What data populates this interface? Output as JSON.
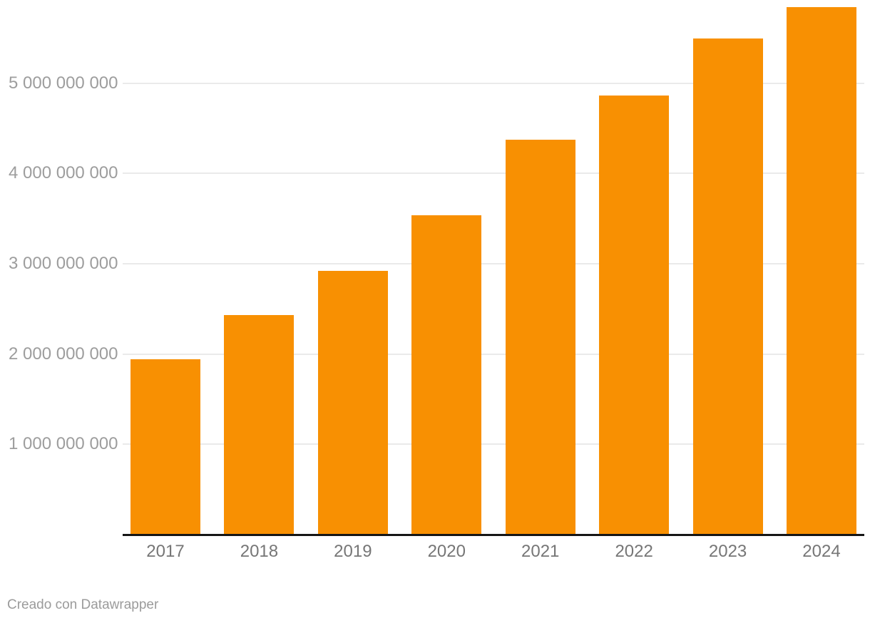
{
  "chart_data": {
    "type": "bar",
    "categories": [
      "2017",
      "2018",
      "2019",
      "2020",
      "2021",
      "2022",
      "2023",
      "2024"
    ],
    "values": [
      1940000000,
      2430000000,
      2920000000,
      3540000000,
      4370000000,
      4860000000,
      5490000000,
      5840000000
    ],
    "ylim": [
      0,
      5920000000
    ],
    "yticks": [
      {
        "value": 1000000000,
        "label": "1 000 000 000"
      },
      {
        "value": 2000000000,
        "label": "2 000 000 000"
      },
      {
        "value": 3000000000,
        "label": "3 000 000 000"
      },
      {
        "value": 4000000000,
        "label": "4 000 000 000"
      },
      {
        "value": 5000000000,
        "label": "5 000 000 000"
      }
    ],
    "grid": "horizontal",
    "legend": false
  },
  "colors": {
    "bar": "#F89002",
    "gridline": "#EAEAEA",
    "axis_line": "#161616",
    "ytick_text": "#9D9D9D",
    "xtick_text": "#767676",
    "credit_text": "#9B9B9B",
    "background": "#FFFFFF"
  },
  "footer": {
    "credit": "Creado con Datawrapper"
  }
}
